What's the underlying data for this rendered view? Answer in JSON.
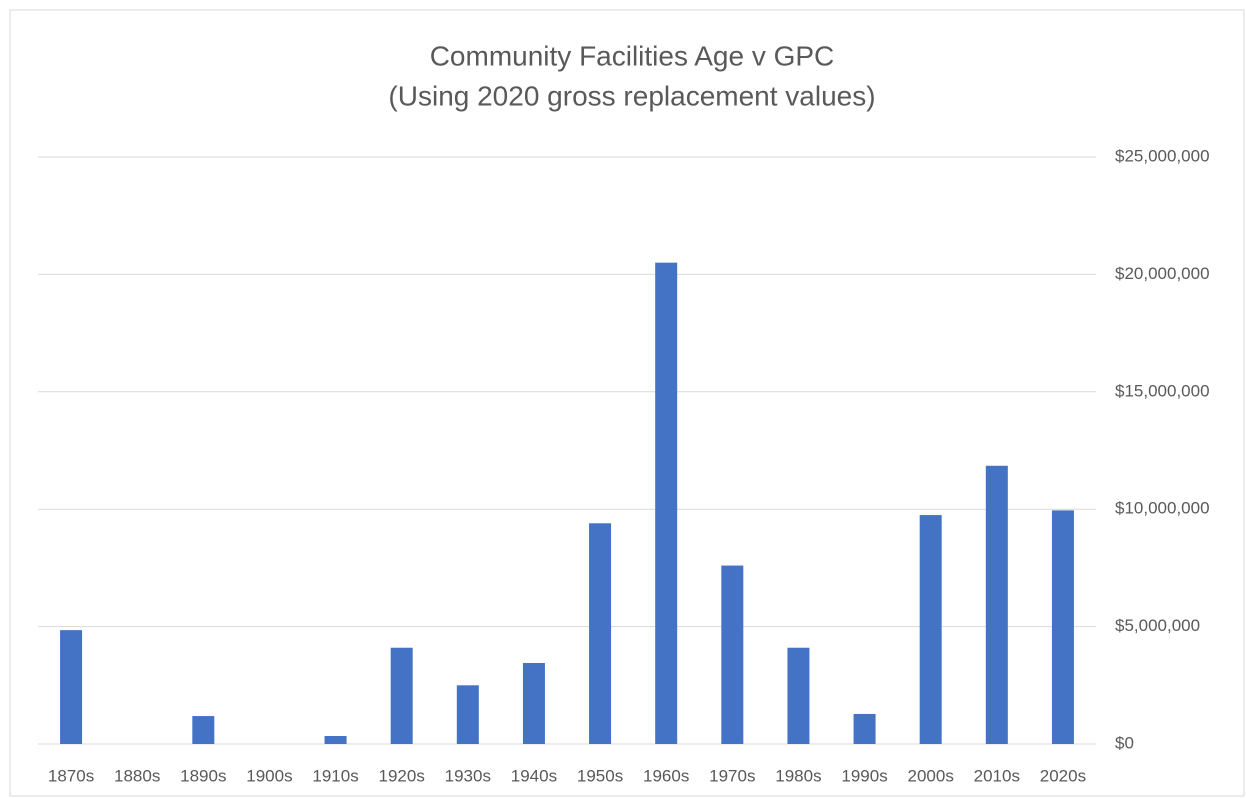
{
  "chart_data": {
    "type": "bar",
    "title": "Community Facilities Age v GPC",
    "subtitle": "(Using 2020 gross replacement values)",
    "categories": [
      "1870s",
      "1880s",
      "1890s",
      "1900s",
      "1910s",
      "1920s",
      "1930s",
      "1940s",
      "1950s",
      "1960s",
      "1970s",
      "1980s",
      "1990s",
      "2000s",
      "2010s",
      "2020s"
    ],
    "values": [
      4850000,
      0,
      1190000,
      0,
      340000,
      4100000,
      2500000,
      3450000,
      9400000,
      20500000,
      7600000,
      4100000,
      1280000,
      9750000,
      11850000,
      9950000
    ],
    "color": "#4472c4",
    "ylim": [
      0,
      25000000
    ],
    "yticks": [
      {
        "value": 0,
        "label": "$0"
      },
      {
        "value": 5000000,
        "label": "$5,000,000"
      },
      {
        "value": 10000000,
        "label": "$10,000,000"
      },
      {
        "value": 15000000,
        "label": "$15,000,000"
      },
      {
        "value": 20000000,
        "label": "$20,000,000"
      },
      {
        "value": 25000000,
        "label": "$25,000,000"
      }
    ],
    "y_axis_side": "right",
    "grid": true
  }
}
